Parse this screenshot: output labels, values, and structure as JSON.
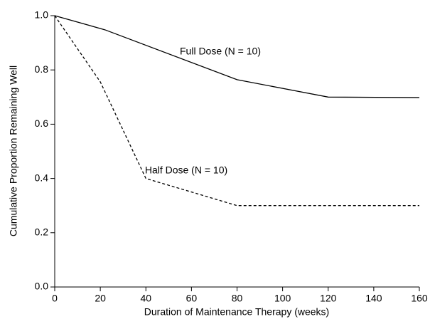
{
  "chart_data": {
    "type": "line",
    "xlabel": "Duration of Maintenance Therapy (weeks)",
    "ylabel": "Cumulative Proportion Remaining Well",
    "series": [
      {
        "name": "Full Dose (N = 10)",
        "color": "#000000",
        "dash": "solid",
        "x": [
          0,
          22,
          80,
          120,
          160
        ],
        "values": [
          1.0,
          0.948,
          0.764,
          0.7,
          0.698
        ]
      },
      {
        "name": "Half Dose (N = 10)",
        "color": "#000000",
        "dash": "dashed",
        "x": [
          0,
          20,
          40,
          80,
          160
        ],
        "values": [
          1.0,
          0.756,
          0.4,
          0.3,
          0.3
        ]
      }
    ],
    "xlim": [
      0,
      160
    ],
    "xticks": [
      0,
      20,
      40,
      60,
      80,
      100,
      120,
      140,
      160
    ],
    "ylim": [
      0,
      1
    ],
    "yticks": [
      {
        "value": 0,
        "label": "0.0"
      },
      0.2,
      0.4,
      0.6,
      0.8,
      {
        "value": 1,
        "label": "1.0"
      }
    ]
  }
}
